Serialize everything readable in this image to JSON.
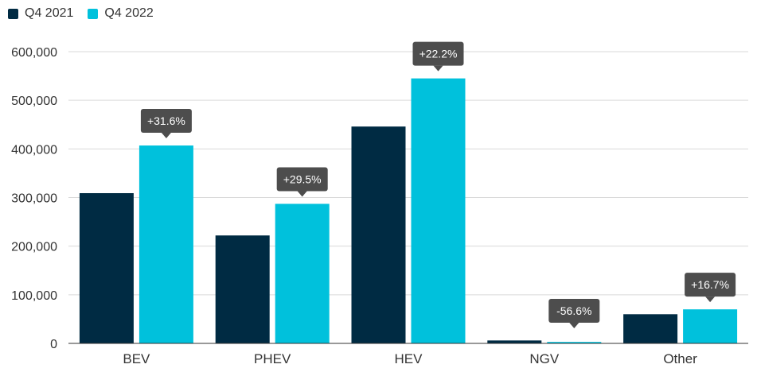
{
  "chart_data": {
    "type": "bar",
    "categories": [
      "BEV",
      "PHEV",
      "HEV",
      "NGV",
      "Other"
    ],
    "series": [
      {
        "name": "Q4 2021",
        "color": "#002b43",
        "values": [
          309000,
          222000,
          446000,
          6000,
          60000
        ]
      },
      {
        "name": "Q4 2022",
        "color": "#00c1dc",
        "values": [
          407000,
          287000,
          545000,
          3000,
          70000
        ]
      }
    ],
    "annotations": [
      "+31.6%",
      "+29.5%",
      "+22.2%",
      "-56.6%",
      "+16.7%"
    ],
    "ylim": [
      0,
      600000
    ],
    "yticks": [
      "0",
      "100,000",
      "200,000",
      "300,000",
      "400,000",
      "500,000",
      "600,000"
    ],
    "legend_position": "top-left",
    "grid": true,
    "annotation_color": "#4d4d4d"
  }
}
